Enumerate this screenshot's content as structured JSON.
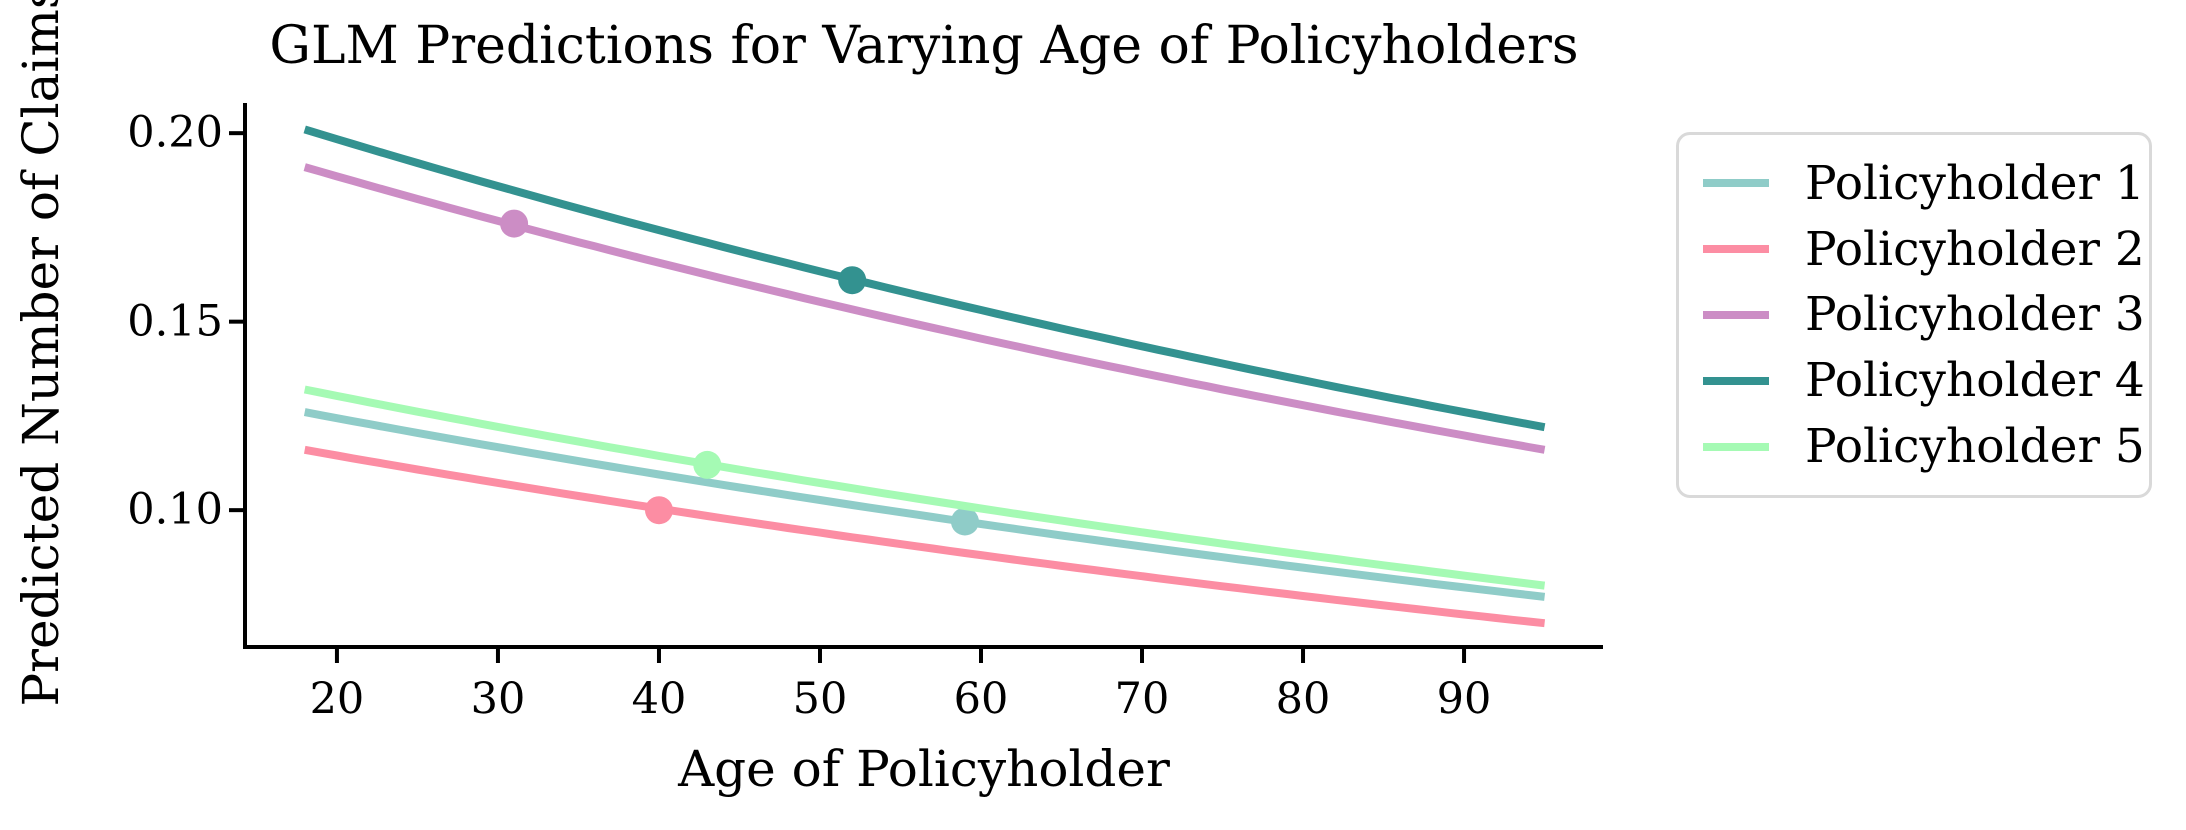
{
  "figure": {
    "background": "#ffffff",
    "text_color": "#000000",
    "axis_color": "#000000",
    "legend_border_color": "#d9d9d9"
  },
  "chart_data": {
    "type": "line",
    "title": "GLM Predictions for Varying Age of Policyholders",
    "xlabel": "Age of Policyholder",
    "ylabel": "Predicted Number of Claims",
    "xlim": [
      14.29,
      98.63
    ],
    "ylim": [
      0.0637,
      0.208
    ],
    "xticks": [
      20,
      30,
      40,
      50,
      60,
      70,
      80,
      90
    ],
    "xtick_labels": [
      "20",
      "30",
      "40",
      "50",
      "60",
      "70",
      "80",
      "90"
    ],
    "yticks": [
      0.1,
      0.15,
      0.2
    ],
    "ytick_labels": [
      "0.10",
      "0.15",
      "0.20"
    ],
    "grid": false,
    "legend_position": "right",
    "curve_shape": "exponential-decay",
    "age_range": [
      18,
      95
    ],
    "series": [
      {
        "name": "Policyholder 1",
        "color": "#8FCCC8",
        "start_value": 0.126,
        "end_value": 0.077,
        "marker": {
          "age": 59,
          "value": 0.097
        }
      },
      {
        "name": "Policyholder 2",
        "color": "#FC8DA3",
        "start_value": 0.116,
        "end_value": 0.07,
        "marker": {
          "age": 40,
          "value": 0.1
        }
      },
      {
        "name": "Policyholder 3",
        "color": "#CC8DC5",
        "start_value": 0.191,
        "end_value": 0.116,
        "marker": {
          "age": 31,
          "value": 0.176
        }
      },
      {
        "name": "Policyholder 4",
        "color": "#339290",
        "start_value": 0.201,
        "end_value": 0.122,
        "marker": {
          "age": 52,
          "value": 0.161
        }
      },
      {
        "name": "Policyholder 5",
        "color": "#A5FAB4",
        "start_value": 0.132,
        "end_value": 0.08,
        "marker": {
          "age": 43,
          "value": 0.112
        }
      }
    ]
  }
}
